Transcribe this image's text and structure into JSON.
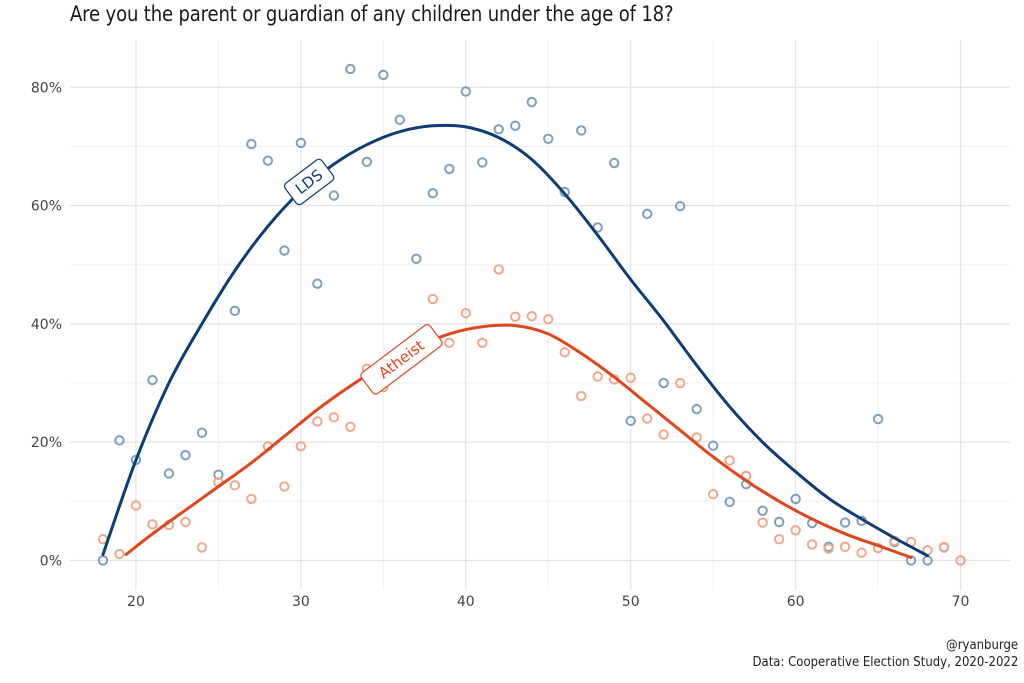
{
  "title": "Are you the parent or guardian of any children under the age of 18?",
  "credits": {
    "handle": "@ryanburge",
    "source": "Data: Cooperative Election Study, 2020-2022"
  },
  "chart_data": {
    "type": "scatter",
    "title": "Are you the parent or guardian of any children under the age of 18?",
    "xlabel": "",
    "ylabel": "",
    "xlim": [
      16,
      73
    ],
    "ylim": [
      -5,
      88
    ],
    "x_ticks": [
      20,
      30,
      40,
      50,
      60,
      70
    ],
    "y_ticks": [
      0,
      20,
      40,
      60,
      80
    ],
    "y_tick_labels": [
      "0%",
      "20%",
      "40%",
      "60%",
      "80%"
    ],
    "grid": true,
    "legend": "none",
    "series": [
      {
        "name": "LDS",
        "color": "#0d3d73",
        "point_color": "#7f9fbe",
        "label_at": [
          30.5,
          64
        ],
        "points": [
          [
            18,
            0
          ],
          [
            19,
            20.3
          ],
          [
            20,
            17
          ],
          [
            21,
            30.5
          ],
          [
            22,
            14.7
          ],
          [
            23,
            17.8
          ],
          [
            24,
            21.6
          ],
          [
            25,
            14.5
          ],
          [
            26,
            42.2
          ],
          [
            27,
            70.4
          ],
          [
            28,
            67.6
          ],
          [
            29,
            52.4
          ],
          [
            30,
            70.6
          ],
          [
            31,
            46.8
          ],
          [
            32,
            61.7
          ],
          [
            33,
            83.1
          ],
          [
            34,
            67.4
          ],
          [
            35,
            82.1
          ],
          [
            36,
            74.5
          ],
          [
            37,
            51
          ],
          [
            38,
            62.1
          ],
          [
            39,
            66.2
          ],
          [
            40,
            79.3
          ],
          [
            41,
            67.3
          ],
          [
            42,
            72.9
          ],
          [
            43,
            73.5
          ],
          [
            44,
            77.5
          ],
          [
            45,
            71.3
          ],
          [
            46,
            62.3
          ],
          [
            47,
            72.7
          ],
          [
            48,
            56.3
          ],
          [
            49,
            67.2
          ],
          [
            50,
            23.6
          ],
          [
            51,
            58.6
          ],
          [
            52,
            30
          ],
          [
            53,
            59.9
          ],
          [
            54,
            25.6
          ],
          [
            55,
            19.4
          ],
          [
            56,
            9.9
          ],
          [
            57,
            12.9
          ],
          [
            58,
            8.4
          ],
          [
            59,
            6.5
          ],
          [
            60,
            10.4
          ],
          [
            61,
            6.3
          ],
          [
            62,
            2.3
          ],
          [
            63,
            6.4
          ],
          [
            64,
            6.7
          ],
          [
            65,
            23.9
          ],
          [
            66,
            3.1
          ],
          [
            67,
            0
          ],
          [
            68,
            0
          ],
          [
            69,
            2.2
          ],
          [
            70,
            0
          ]
        ],
        "trend": [
          [
            18,
            1
          ],
          [
            20,
            17
          ],
          [
            22,
            30
          ],
          [
            24,
            40
          ],
          [
            26,
            49
          ],
          [
            28,
            56.5
          ],
          [
            30,
            62.5
          ],
          [
            32,
            67
          ],
          [
            34,
            70.3
          ],
          [
            36,
            72.5
          ],
          [
            38,
            73.5
          ],
          [
            40,
            73.3
          ],
          [
            42,
            71.5
          ],
          [
            44,
            67.8
          ],
          [
            46,
            62
          ],
          [
            48,
            55
          ],
          [
            50,
            47.5
          ],
          [
            52,
            40.5
          ],
          [
            54,
            33
          ],
          [
            56,
            26
          ],
          [
            58,
            20
          ],
          [
            60,
            15
          ],
          [
            62,
            10.5
          ],
          [
            64,
            7
          ],
          [
            66,
            3.8
          ],
          [
            68,
            0.8
          ]
        ]
      },
      {
        "name": "Atheist",
        "color": "#e0461d",
        "point_color": "#efa88c",
        "label_at": [
          36.1,
          34
        ],
        "points": [
          [
            18,
            3.6
          ],
          [
            19,
            1.1
          ],
          [
            20,
            9.3
          ],
          [
            21,
            6.1
          ],
          [
            22,
            6
          ],
          [
            23,
            6.5
          ],
          [
            24,
            2.2
          ],
          [
            25,
            13.2
          ],
          [
            26,
            12.7
          ],
          [
            27,
            10.4
          ],
          [
            28,
            19.3
          ],
          [
            29,
            12.5
          ],
          [
            30,
            19.3
          ],
          [
            31,
            23.5
          ],
          [
            32,
            24.2
          ],
          [
            33,
            22.6
          ],
          [
            34,
            32.4
          ],
          [
            35,
            29.3
          ],
          [
            36,
            33.8
          ],
          [
            37,
            35.6
          ],
          [
            38,
            44.2
          ],
          [
            39,
            36.8
          ],
          [
            40,
            41.8
          ],
          [
            41,
            36.8
          ],
          [
            42,
            49.2
          ],
          [
            43,
            41.2
          ],
          [
            44,
            41.3
          ],
          [
            45,
            40.8
          ],
          [
            46,
            35.2
          ],
          [
            47,
            27.8
          ],
          [
            48,
            31.1
          ],
          [
            49,
            30.6
          ],
          [
            50,
            30.9
          ],
          [
            51,
            24
          ],
          [
            52,
            21.3
          ],
          [
            53,
            30
          ],
          [
            54,
            20.8
          ],
          [
            55,
            11.2
          ],
          [
            56,
            16.9
          ],
          [
            57,
            14.3
          ],
          [
            58,
            6.4
          ],
          [
            59,
            3.6
          ],
          [
            60,
            5.1
          ],
          [
            61,
            2.7
          ],
          [
            62,
            2
          ],
          [
            63,
            2.3
          ],
          [
            64,
            1.3
          ],
          [
            65,
            2.1
          ],
          [
            66,
            3.3
          ],
          [
            67,
            3.1
          ],
          [
            68,
            1.7
          ],
          [
            69,
            2.3
          ],
          [
            70,
            0
          ]
        ],
        "trend": [
          [
            19.4,
            1
          ],
          [
            21,
            4.5
          ],
          [
            23,
            8.5
          ],
          [
            25,
            12.5
          ],
          [
            27,
            16.5
          ],
          [
            29,
            21
          ],
          [
            31,
            25.5
          ],
          [
            33,
            29.5
          ],
          [
            35,
            33
          ],
          [
            37,
            36
          ],
          [
            39,
            38.3
          ],
          [
            41,
            39.5
          ],
          [
            43,
            39.7
          ],
          [
            45,
            38.3
          ],
          [
            47,
            35
          ],
          [
            49,
            31
          ],
          [
            51,
            26.5
          ],
          [
            53,
            22
          ],
          [
            55,
            17.5
          ],
          [
            57,
            13.5
          ],
          [
            59,
            10
          ],
          [
            61,
            7
          ],
          [
            63,
            4.5
          ],
          [
            65,
            2.5
          ],
          [
            67,
            0.5
          ]
        ]
      }
    ]
  }
}
